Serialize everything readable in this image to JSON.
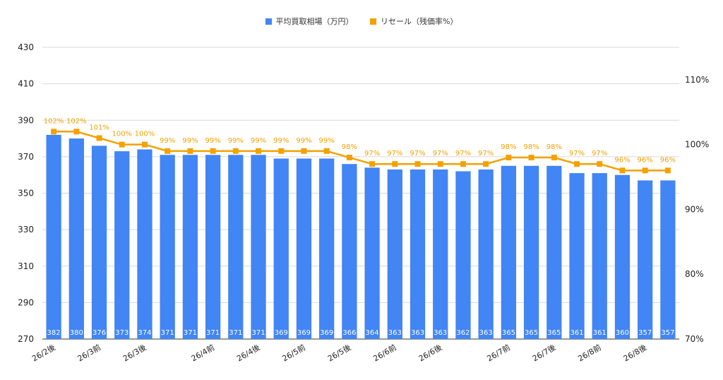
{
  "chart_data": {
    "type": "bar+line",
    "categories": [
      "26/2後",
      "",
      "26/3前",
      "",
      "26/3後",
      "",
      "",
      "26/4前",
      "",
      "26/4後",
      "",
      "26/5前",
      "",
      "26/5後",
      "",
      "26/6前",
      "",
      "26/6後",
      "",
      "",
      "26/7前",
      "",
      "26/7後",
      "",
      "26/8前",
      "",
      "26/8後",
      ""
    ],
    "series": [
      {
        "name": "平均買取相場（万円）",
        "type": "bar",
        "axis": "left",
        "color": "#4285f4",
        "values": [
          382,
          380,
          376,
          373,
          374,
          371,
          371,
          371,
          371,
          371,
          369,
          369,
          369,
          366,
          364,
          363,
          363,
          363,
          362,
          363,
          365,
          365,
          365,
          361,
          361,
          360,
          357,
          357
        ]
      },
      {
        "name": "リセール（残価率%）",
        "type": "line",
        "axis": "right",
        "color": "#f4a100",
        "values": [
          102,
          102,
          101,
          100,
          100,
          99,
          99,
          99,
          99,
          99,
          99,
          99,
          99,
          98,
          97,
          97,
          97,
          97,
          97,
          97,
          98,
          98,
          98,
          97,
          97,
          96,
          96,
          96
        ],
        "labels": [
          "102%",
          "102%",
          "101%",
          "100%",
          "100%",
          "99%",
          "99%",
          "99%",
          "99%",
          "99%",
          "99%",
          "99%",
          "99%",
          "98%",
          "97%",
          "97%",
          "97%",
          "97%",
          "97%",
          "97%",
          "98%",
          "98%",
          "98%",
          "97%",
          "97%",
          "96%",
          "96%",
          "96%"
        ]
      }
    ],
    "y_left": {
      "min": 270,
      "max": 430,
      "ticks": [
        "270",
        "290",
        "310",
        "330",
        "350",
        "370",
        "390",
        "410",
        "430"
      ]
    },
    "y_right": {
      "min": 70,
      "max": 115,
      "ticks": [
        "70%",
        "80%",
        "90%",
        "100%",
        "110%"
      ]
    },
    "grid": true,
    "legend_position": "top-center"
  }
}
